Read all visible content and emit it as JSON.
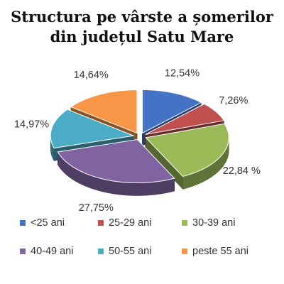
{
  "chart_data": {
    "type": "pie",
    "title_lines": [
      "Structura pe vârste a șomerilor",
      "din județul Satu Mare"
    ],
    "categories": [
      "<25 ani",
      "25-29 ani",
      "30-39 ani",
      "40-49 ani",
      "50-55 ani",
      "peste 55 ani"
    ],
    "values": [
      12.54,
      7.26,
      22.84,
      27.75,
      14.97,
      14.64
    ],
    "labels": [
      "12,54%",
      "7,26%",
      "22,84 %",
      "27,75%",
      "14,97%",
      "14,64%"
    ],
    "colors": [
      "#4472C4",
      "#C0504D",
      "#9BBB59",
      "#8064A2",
      "#4BACC6",
      "#F79646"
    ],
    "legend_position": "bottom",
    "style": "3d-exploded"
  }
}
